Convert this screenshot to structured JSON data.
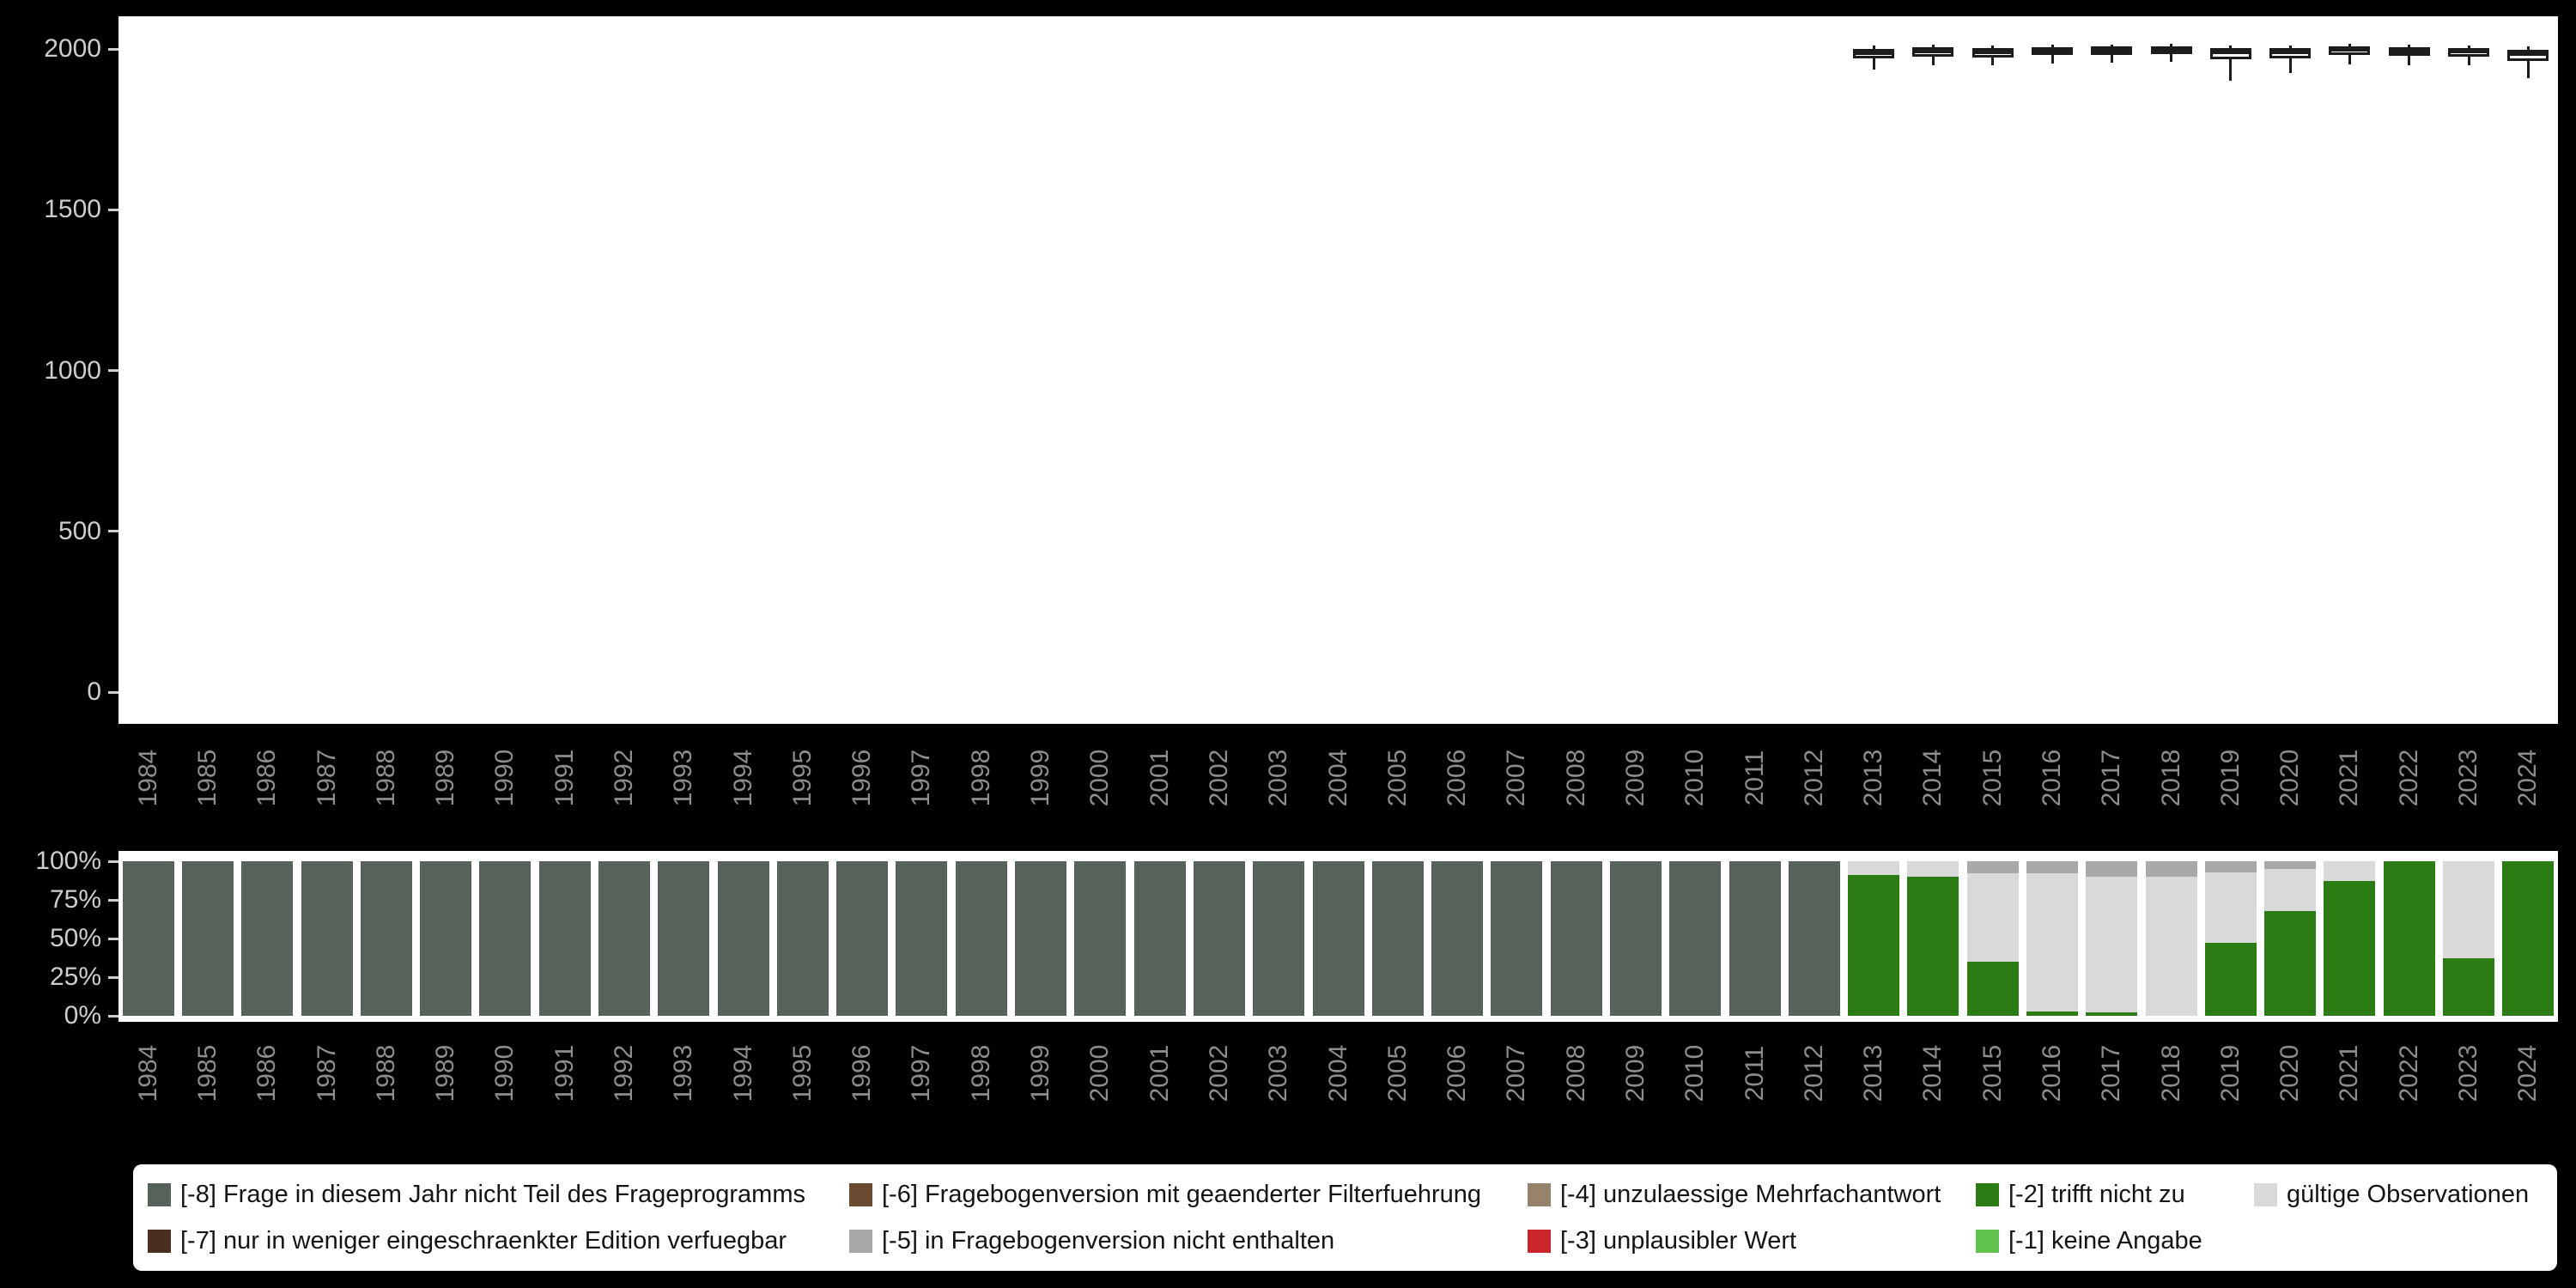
{
  "colors": {
    "background": "#000000",
    "panel_background": "#ffffff",
    "axis_tick_text": "#cdcdcd",
    "year_label_text": "#8d8d8d",
    "box_stroke": "#1c1c1c",
    "legend_background": "#ffffff",
    "legend_text": "#141414"
  },
  "category_colors": {
    "-8": "#57635a",
    "-7": "#4a2e20",
    "-6": "#6b4a32",
    "-5": "#a8a8a8",
    "-4": "#95836c",
    "-3": "#c9252b",
    "-2": "#2c7c15",
    "-1": "#61c24d",
    "valid": "#d9d9d9"
  },
  "legend": {
    "items": [
      {
        "key": "-8",
        "label": "[-8] Frage in diesem Jahr nicht Teil des Frageprogramms"
      },
      {
        "key": "-6",
        "label": "[-6] Fragebogenversion mit geaenderter Filterfuehrung"
      },
      {
        "key": "-4",
        "label": "[-4] unzulaessige Mehrfachantwort"
      },
      {
        "key": "-2",
        "label": "[-2] trifft nicht zu"
      },
      {
        "key": "valid",
        "label": "gültige Observationen"
      },
      {
        "key": "-7",
        "label": "[-7] nur in weniger eingeschraenkter Edition verfuegbar"
      },
      {
        "key": "-5",
        "label": "[-5] in Fragebogenversion nicht enthalten"
      },
      {
        "key": "-3",
        "label": "[-3] unplausibler Wert"
      },
      {
        "key": "-1",
        "label": "[-1] keine Angabe"
      }
    ]
  },
  "chart_data": [
    {
      "type": "boxplot",
      "title": "",
      "xlabel": "",
      "ylabel": "",
      "x": [
        1984,
        1985,
        1986,
        1987,
        1988,
        1989,
        1990,
        1991,
        1992,
        1993,
        1994,
        1995,
        1996,
        1997,
        1998,
        1999,
        2000,
        2001,
        2002,
        2003,
        2004,
        2005,
        2006,
        2007,
        2008,
        2009,
        2010,
        2011,
        2012,
        2013,
        2014,
        2015,
        2016,
        2017,
        2018,
        2019,
        2020,
        2021,
        2022,
        2023,
        2024
      ],
      "ylim": [
        0,
        2000
      ],
      "yticks": [
        0,
        500,
        1000,
        1500,
        2000
      ],
      "grid": false,
      "boxes": [
        {
          "year": 2013,
          "whisker_low": 1935,
          "q1": 1970,
          "median": 1987,
          "q3": 2000,
          "whisker_high": 2010
        },
        {
          "year": 2014,
          "whisker_low": 1950,
          "q1": 1976,
          "median": 1992,
          "q3": 2006,
          "whisker_high": 2014
        },
        {
          "year": 2015,
          "whisker_low": 1948,
          "q1": 1974,
          "median": 1990,
          "q3": 2004,
          "whisker_high": 2012
        },
        {
          "year": 2016,
          "whisker_low": 1955,
          "q1": 1980,
          "median": 1994,
          "q3": 2006,
          "whisker_high": 2013
        },
        {
          "year": 2017,
          "whisker_low": 1957,
          "q1": 1982,
          "median": 1995,
          "q3": 2007,
          "whisker_high": 2014
        },
        {
          "year": 2018,
          "whisker_low": 1960,
          "q1": 1984,
          "median": 1996,
          "q3": 2008,
          "whisker_high": 2015
        },
        {
          "year": 2019,
          "whisker_low": 1900,
          "q1": 1968,
          "median": 1988,
          "q3": 2003,
          "whisker_high": 2012
        },
        {
          "year": 2020,
          "whisker_low": 1925,
          "q1": 1970,
          "median": 1990,
          "q3": 2004,
          "whisker_high": 2012
        },
        {
          "year": 2021,
          "whisker_low": 1952,
          "q1": 1982,
          "median": 1996,
          "q3": 2009,
          "whisker_high": 2016
        },
        {
          "year": 2022,
          "whisker_low": 1950,
          "q1": 1978,
          "median": 1993,
          "q3": 2006,
          "whisker_high": 2013
        },
        {
          "year": 2023,
          "whisker_low": 1948,
          "q1": 1976,
          "median": 1991,
          "q3": 2004,
          "whisker_high": 2012
        },
        {
          "year": 2024,
          "whisker_low": 1910,
          "q1": 1962,
          "median": 1983,
          "q3": 1998,
          "whisker_high": 2008
        }
      ]
    },
    {
      "type": "bar",
      "stacked": true,
      "unit": "percent",
      "categories": [
        1984,
        1985,
        1986,
        1987,
        1988,
        1989,
        1990,
        1991,
        1992,
        1993,
        1994,
        1995,
        1996,
        1997,
        1998,
        1999,
        2000,
        2001,
        2002,
        2003,
        2004,
        2005,
        2006,
        2007,
        2008,
        2009,
        2010,
        2011,
        2012,
        2013,
        2014,
        2015,
        2016,
        2017,
        2018,
        2019,
        2020,
        2021,
        2022,
        2023,
        2024
      ],
      "yticks_percent": [
        0,
        25,
        50,
        75,
        100
      ],
      "ytick_labels": [
        "0%",
        "25%",
        "50%",
        "75%",
        "100%"
      ],
      "series": [
        {
          "key": "-8",
          "name": "[-8] Frage in diesem Jahr nicht Teil des Frageprogramms",
          "values": [
            100,
            100,
            100,
            100,
            100,
            100,
            100,
            100,
            100,
            100,
            100,
            100,
            100,
            100,
            100,
            100,
            100,
            100,
            100,
            100,
            100,
            100,
            100,
            100,
            100,
            100,
            100,
            100,
            100,
            0,
            0,
            0,
            0,
            0,
            0,
            0,
            0,
            0,
            0,
            0,
            0
          ]
        },
        {
          "key": "-2",
          "name": "[-2] trifft nicht zu",
          "values": [
            0,
            0,
            0,
            0,
            0,
            0,
            0,
            0,
            0,
            0,
            0,
            0,
            0,
            0,
            0,
            0,
            0,
            0,
            0,
            0,
            0,
            0,
            0,
            0,
            0,
            0,
            0,
            0,
            0,
            91,
            90,
            35,
            3,
            2,
            0,
            47,
            68,
            87,
            100,
            37,
            100
          ]
        },
        {
          "key": "valid",
          "name": "gültige Observationen",
          "values": [
            0,
            0,
            0,
            0,
            0,
            0,
            0,
            0,
            0,
            0,
            0,
            0,
            0,
            0,
            0,
            0,
            0,
            0,
            0,
            0,
            0,
            0,
            0,
            0,
            0,
            0,
            0,
            0,
            0,
            9,
            10,
            57,
            89,
            88,
            90,
            46,
            27,
            13,
            0,
            63,
            0
          ]
        },
        {
          "key": "-5",
          "name": "[-5] in Fragebogenversion nicht enthalten",
          "values": [
            0,
            0,
            0,
            0,
            0,
            0,
            0,
            0,
            0,
            0,
            0,
            0,
            0,
            0,
            0,
            0,
            0,
            0,
            0,
            0,
            0,
            0,
            0,
            0,
            0,
            0,
            0,
            0,
            0,
            0,
            0,
            8,
            8,
            10,
            10,
            7,
            5,
            0,
            0,
            0,
            0
          ]
        }
      ]
    }
  ]
}
